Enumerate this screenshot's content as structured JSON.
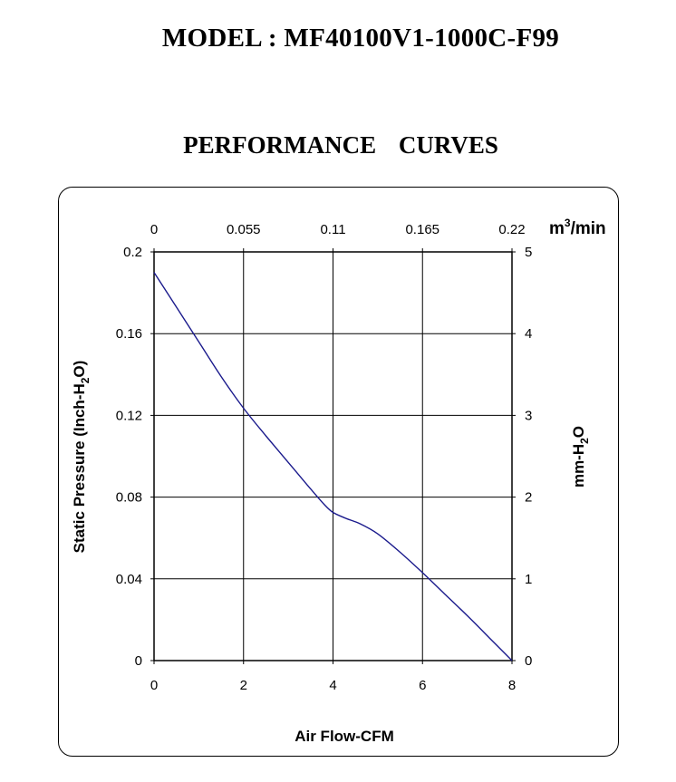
{
  "header": {
    "model_label": "MODEL : MF40100V1-1000C-F99",
    "section_title": "PERFORMANCE    CURVES"
  },
  "chart_data": {
    "type": "line",
    "title": "PERFORMANCE CURVES",
    "xlabel": "Air Flow-CFM",
    "ylabel": "Static Pressure (Inch-H",
    "ylabel_sub": "2",
    "ylabel_end": "O)",
    "y2label": "mm-H",
    "y2label_sub": "2",
    "y2label_end": "O",
    "x2label": "m",
    "x2label_sup": "3",
    "x2label_end": "/min",
    "xlim": [
      0,
      8
    ],
    "ylim": [
      0,
      0.2
    ],
    "x_ticks": [
      "0",
      "2",
      "4",
      "6",
      "8"
    ],
    "x_tick_values": [
      0,
      2,
      4,
      6,
      8
    ],
    "y_ticks": [
      "0",
      "0.04",
      "0.08",
      "0.12",
      "0.16",
      "0.2"
    ],
    "y_tick_values": [
      0,
      0.04,
      0.08,
      0.12,
      0.16,
      0.2
    ],
    "x2_ticks": [
      "0",
      "0.055",
      "0.11",
      "0.165",
      "0.22"
    ],
    "y2_ticks": [
      "0",
      "1",
      "2",
      "3",
      "4",
      "5"
    ],
    "grid": true,
    "line_color": "#1a1a8c",
    "series": [
      {
        "name": "Static Pressure",
        "x": [
          0,
          0.5,
          1.0,
          1.5,
          2.0,
          2.5,
          3.0,
          3.5,
          3.8,
          4.0,
          4.3,
          4.6,
          5.0,
          5.5,
          6.0,
          6.5,
          7.0,
          7.5,
          8.0
        ],
        "y": [
          0.19,
          0.173,
          0.156,
          0.139,
          0.1235,
          0.11,
          0.097,
          0.084,
          0.0765,
          0.0725,
          0.0695,
          0.067,
          0.062,
          0.053,
          0.043,
          0.0325,
          0.022,
          0.011,
          0.0
        ]
      }
    ]
  }
}
